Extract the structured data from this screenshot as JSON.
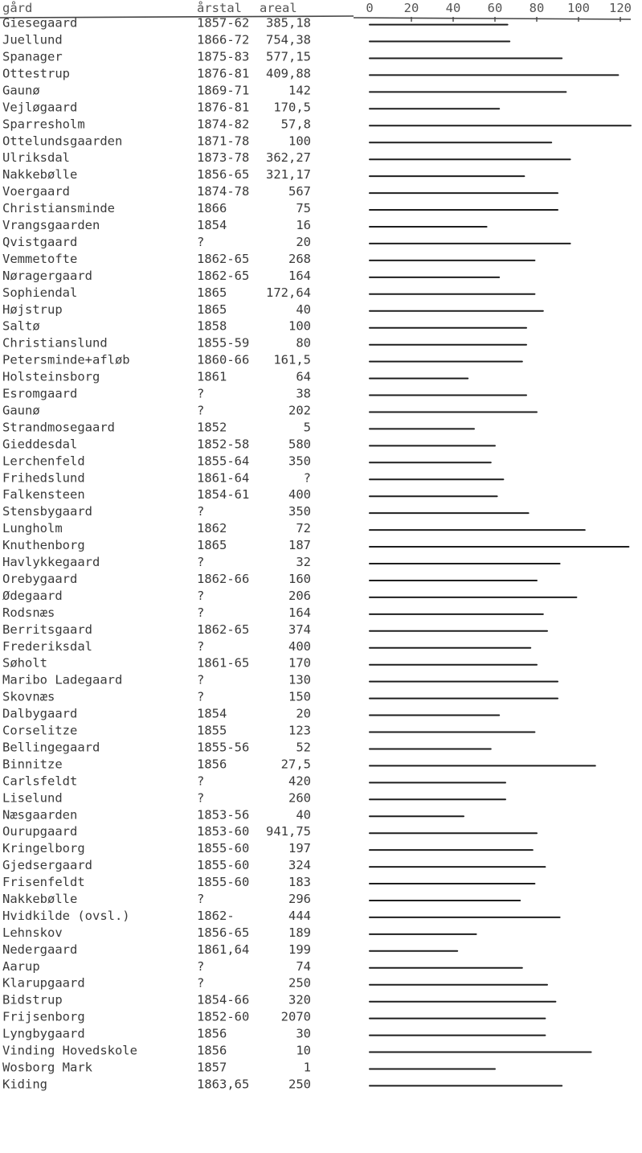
{
  "chart_data": {
    "type": "bar",
    "orientation": "horizontal",
    "title": "",
    "columns": {
      "farm": "gård",
      "year": "årstal",
      "area": "areal"
    },
    "x_ticks": [
      "0",
      "20",
      "40",
      "60",
      "80",
      "100",
      "120"
    ],
    "xlim": [
      0,
      120
    ],
    "grid": false,
    "rows": [
      {
        "farm": "Giesegaard",
        "year": "1857-62",
        "area": "385,18",
        "value": 66
      },
      {
        "farm": "Juellund",
        "year": "1866-72",
        "area": "754,38",
        "value": 67
      },
      {
        "farm": "Spanager",
        "year": "1875-83",
        "area": "577,15",
        "value": 92
      },
      {
        "farm": "Ottestrup",
        "year": "1876-81",
        "area": "409,88",
        "value": 119
      },
      {
        "farm": "Gaunø",
        "year": "1869-71",
        "area": "142",
        "value": 94
      },
      {
        "farm": "Vejløgaard",
        "year": "1876-81",
        "area": "170,5",
        "value": 62
      },
      {
        "farm": "Sparresholm",
        "year": "1874-82",
        "area": "57,8",
        "value": 125
      },
      {
        "farm": "Ottelundsgaarden",
        "year": "1871-78",
        "area": "100",
        "value": 87
      },
      {
        "farm": "Ulriksdal",
        "year": "1873-78",
        "area": "362,27",
        "value": 96
      },
      {
        "farm": "Nakkebølle",
        "year": "1856-65",
        "area": "321,17",
        "value": 74
      },
      {
        "farm": "Voergaard",
        "year": "1874-78",
        "area": "567",
        "value": 90
      },
      {
        "farm": "Christiansminde",
        "year": "1866",
        "area": "75",
        "value": 90
      },
      {
        "farm": "Vrangsgaarden",
        "year": "1854",
        "area": "16",
        "value": 56
      },
      {
        "farm": "Qvistgaard",
        "year": "?",
        "area": "20",
        "value": 96
      },
      {
        "farm": "Vemmetofte",
        "year": "1862-65",
        "area": "268",
        "value": 79
      },
      {
        "farm": "Nøragergaard",
        "year": "1862-65",
        "area": "164",
        "value": 62
      },
      {
        "farm": "Sophiendal",
        "year": "1865",
        "area": "172,64",
        "value": 79
      },
      {
        "farm": "Højstrup",
        "year": "1865",
        "area": "40",
        "value": 83
      },
      {
        "farm": "Saltø",
        "year": "1858",
        "area": "100",
        "value": 75
      },
      {
        "farm": "Christianslund",
        "year": "1855-59",
        "area": "80",
        "value": 75
      },
      {
        "farm": "Petersminde+afløb",
        "year": "1860-66",
        "area": "161,5",
        "value": 73
      },
      {
        "farm": "Holsteinsborg",
        "year": "1861",
        "area": "64",
        "value": 47
      },
      {
        "farm": "Esromgaard",
        "year": "?",
        "area": "38",
        "value": 75
      },
      {
        "farm": "Gaunø",
        "year": "?",
        "area": "202",
        "value": 80
      },
      {
        "farm": "Strandmosegaard",
        "year": "1852",
        "area": "5",
        "value": 50
      },
      {
        "farm": "Gieddesdal",
        "year": "1852-58",
        "area": "580",
        "value": 60
      },
      {
        "farm": "Lerchenfeld",
        "year": "1855-64",
        "area": "350",
        "value": 58
      },
      {
        "farm": "Frihedslund",
        "year": "1861-64",
        "area": "?",
        "value": 64
      },
      {
        "farm": "Falkensteen",
        "year": "1854-61",
        "area": "400",
        "value": 61
      },
      {
        "farm": "Stensbygaard",
        "year": "?",
        "area": "350",
        "value": 76
      },
      {
        "farm": "Lungholm",
        "year": "1862",
        "area": "72",
        "value": 103
      },
      {
        "farm": "Knuthenborg",
        "year": "1865",
        "area": "187",
        "value": 124
      },
      {
        "farm": "Havlykkegaard",
        "year": "?",
        "area": "32",
        "value": 91
      },
      {
        "farm": "Orebygaard",
        "year": "1862-66",
        "area": "160",
        "value": 80
      },
      {
        "farm": "Ødegaard",
        "year": "?",
        "area": "206",
        "value": 99
      },
      {
        "farm": "Rodsnæs",
        "year": "?",
        "area": "164",
        "value": 83
      },
      {
        "farm": "Berritsgaard",
        "year": "1862-65",
        "area": "374",
        "value": 85
      },
      {
        "farm": "Frederiksdal",
        "year": "?",
        "area": "400",
        "value": 77
      },
      {
        "farm": "Søholt",
        "year": "1861-65",
        "area": "170",
        "value": 80
      },
      {
        "farm": "Maribo Ladegaard",
        "year": "?",
        "area": "130",
        "value": 90
      },
      {
        "farm": "Skovnæs",
        "year": "?",
        "area": "150",
        "value": 90
      },
      {
        "farm": "Dalbygaard",
        "year": "1854",
        "area": "20",
        "value": 62
      },
      {
        "farm": "Corselitze",
        "year": "1855",
        "area": "123",
        "value": 79
      },
      {
        "farm": "Bellingegaard",
        "year": "1855-56",
        "area": "52",
        "value": 58
      },
      {
        "farm": "Binnitze",
        "year": "1856",
        "area": "27,5",
        "value": 108
      },
      {
        "farm": "Carlsfeldt",
        "year": "?",
        "area": "420",
        "value": 65
      },
      {
        "farm": "Liselund",
        "year": "?",
        "area": "260",
        "value": 65
      },
      {
        "farm": "Næsgaarden",
        "year": "1853-56",
        "area": "40",
        "value": 45
      },
      {
        "farm": "Ourupgaard",
        "year": "1853-60",
        "area": "941,75",
        "value": 80
      },
      {
        "farm": "Kringelborg",
        "year": "1855-60",
        "area": "197",
        "value": 78
      },
      {
        "farm": "Gjedsergaard",
        "year": "1855-60",
        "area": "324",
        "value": 84
      },
      {
        "farm": "Frisenfeldt",
        "year": "1855-60",
        "area": "183",
        "value": 79
      },
      {
        "farm": "Nakkebølle",
        "year": "?",
        "area": "296",
        "value": 72
      },
      {
        "farm": "Hvidkilde (ovsl.)",
        "year": "1862-",
        "area": "444",
        "value": 91
      },
      {
        "farm": "Lehnskov",
        "year": "1856-65",
        "area": "189",
        "value": 51
      },
      {
        "farm": "Nedergaard",
        "year": "1861,64",
        "area": "199",
        "value": 42
      },
      {
        "farm": "Aarup",
        "year": "?",
        "area": "74",
        "value": 73
      },
      {
        "farm": "Klarupgaard",
        "year": "?",
        "area": "250",
        "value": 85
      },
      {
        "farm": "Bidstrup",
        "year": "1854-66",
        "area": "320",
        "value": 89
      },
      {
        "farm": "Frijsenborg",
        "year": "1852-60",
        "area": "2070",
        "value": 84
      },
      {
        "farm": "Lyngbygaard",
        "year": "1856",
        "area": "30",
        "value": 84
      },
      {
        "farm": "Vinding Hovedskole",
        "year": "1856",
        "area": "10",
        "value": 106
      },
      {
        "farm": "Wosborg Mark",
        "year": "1857",
        "area": "1",
        "value": 60
      },
      {
        "farm": "Kiding",
        "year": "1863,65",
        "area": "250",
        "value": 92
      }
    ]
  }
}
